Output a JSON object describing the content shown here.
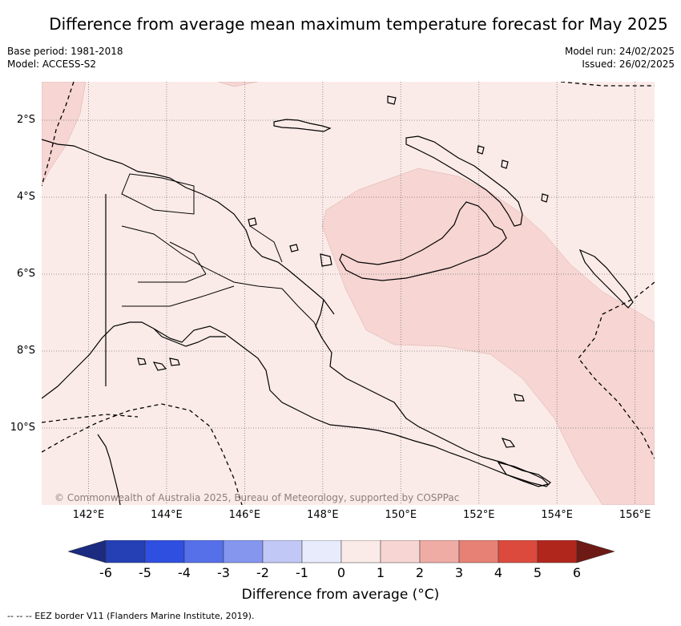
{
  "title": "Difference from average mean maximum temperature forecast for May 2025",
  "info": {
    "base_period": "Base period: 1981-2018",
    "model": "Model: ACCESS-S2",
    "model_run": "Model run: 24/02/2025",
    "issued": "Issued: 26/02/2025"
  },
  "map": {
    "region": "Papua New Guinea",
    "lon_range": [
      140.8,
      156.5
    ],
    "lat_range": [
      -12.0,
      -1.0
    ],
    "lat_ticks": [
      {
        "value": -2,
        "label": "2°S"
      },
      {
        "value": -4,
        "label": "4°S"
      },
      {
        "value": -6,
        "label": "6°S"
      },
      {
        "value": -8,
        "label": "8°S"
      },
      {
        "value": -10,
        "label": "10°S"
      }
    ],
    "lon_ticks": [
      {
        "value": 142,
        "label": "142°E"
      },
      {
        "value": 144,
        "label": "144°E"
      },
      {
        "value": 146,
        "label": "146°E"
      },
      {
        "value": 148,
        "label": "148°E"
      },
      {
        "value": 150,
        "label": "150°E"
      },
      {
        "value": 152,
        "label": "152°E"
      },
      {
        "value": 154,
        "label": "154°E"
      },
      {
        "value": 156,
        "label": "156°E"
      }
    ],
    "gridlines": true,
    "background_anomaly_class": "0 to 1",
    "copyright": "© Commonwealth of Australia 2025, Bureau of Meteorology, supported by COSPPac"
  },
  "colorbar": {
    "label": "Difference from average (°C)",
    "ticks": [
      "-6",
      "-5",
      "-4",
      "-3",
      "-2",
      "-1",
      "0",
      "1",
      "2",
      "3",
      "4",
      "5",
      "6"
    ],
    "colors": [
      "#2540b5",
      "#2f4fe0",
      "#5570e8",
      "#8496ee",
      "#c2c8f6",
      "#e8ebfb",
      "#fbebe8",
      "#f6d5d2",
      "#efaca5",
      "#e78075",
      "#dc4a3e",
      "#b0261d"
    ],
    "under_color": "#1a2b80",
    "over_color": "#6e1a14"
  },
  "colors": {
    "anomaly_0_1": "#fbebe8",
    "anomaly_1_2": "#f6d5d2"
  },
  "footnote": "-- -- -- EEZ border V11 (Flanders Marine Institute, 2019)."
}
